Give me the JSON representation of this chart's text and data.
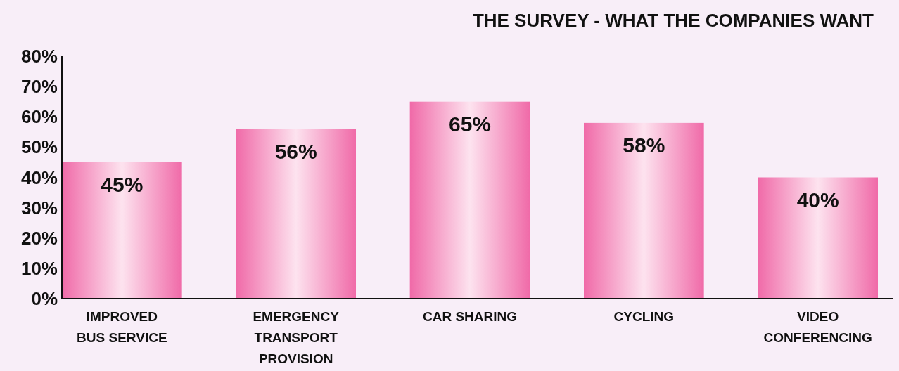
{
  "chart_data": {
    "type": "bar",
    "title": "THE SURVEY - WHAT THE COMPANIES WANT",
    "categories": [
      "IMPROVED BUS SERVICE",
      "EMERGENCY TRANSPORT PROVISION",
      "CAR SHARING",
      "CYCLING",
      "VIDEO CONFERENCING"
    ],
    "values": [
      45,
      56,
      65,
      58,
      40
    ],
    "color": "#f06aa8",
    "ylim": [
      0,
      80
    ],
    "yticks": [
      {
        "value": 0,
        "label": "0%"
      },
      {
        "value": 10,
        "label": "10%"
      },
      {
        "value": 20,
        "label": "20%"
      },
      {
        "value": 30,
        "label": "30%"
      },
      {
        "value": 40,
        "label": "40%"
      },
      {
        "value": 50,
        "label": "50%"
      },
      {
        "value": 60,
        "label": "60%"
      },
      {
        "value": 70,
        "label": "70%"
      },
      {
        "value": 80,
        "label": "80%"
      }
    ],
    "data_labels": true,
    "value_labels": [
      "45%",
      "56%",
      "65%",
      "58%",
      "40%"
    ]
  }
}
